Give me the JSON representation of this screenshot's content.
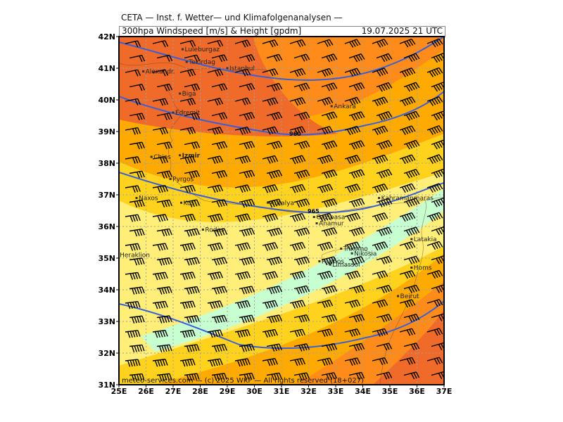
{
  "header": {
    "title": "CETA — Inst. f. Wetter— und Klimafolgenanalysen —",
    "subtitle_left": "300hpa Windspeed [m/s] & Height [gpdm]",
    "subtitle_right": "19.07.2025 21 UTC"
  },
  "axes": {
    "lat_labels": [
      "42N",
      "41N",
      "40N",
      "39N",
      "38N",
      "37N",
      "36N",
      "35N",
      "34N",
      "33N",
      "32N",
      "31N"
    ],
    "lon_labels": [
      "25E",
      "26E",
      "27E",
      "28E",
      "29E",
      "30E",
      "31E",
      "32E",
      "33E",
      "34E",
      "35E",
      "36E",
      "37E"
    ],
    "lat_range": [
      31,
      42
    ],
    "lon_range": [
      25,
      37
    ]
  },
  "colors": {
    "light_green": "#c8ffd0",
    "pale_yellow": "#ffee77",
    "yellow": "#ffd21e",
    "orange_light": "#ffaa00",
    "orange": "#ff8c1a",
    "orange_dark": "#f06a2a",
    "contour": "#3a5fd8",
    "barb": "#000000"
  },
  "contours": [
    {
      "label": "960"
    },
    {
      "label": "965"
    }
  ],
  "cities": [
    {
      "name": "Luleburgaz",
      "lon": 27.35,
      "lat": 41.6,
      "bold": false
    },
    {
      "name": "Tekirdag",
      "lon": 27.5,
      "lat": 41.2,
      "bold": false
    },
    {
      "name": "Alexandr.",
      "lon": 25.9,
      "lat": 40.9,
      "bold": false
    },
    {
      "name": "Istanbul",
      "lon": 29.0,
      "lat": 41.0,
      "bold": false
    },
    {
      "name": "Biga",
      "lon": 27.25,
      "lat": 40.2,
      "bold": false
    },
    {
      "name": "Edremit",
      "lon": 27.0,
      "lat": 39.6,
      "bold": false
    },
    {
      "name": "Ankara",
      "lon": 32.85,
      "lat": 39.8,
      "bold": false
    },
    {
      "name": "Chios",
      "lon": 26.2,
      "lat": 38.2,
      "bold": false
    },
    {
      "name": "Izmir",
      "lon": 27.25,
      "lat": 38.25,
      "bold": true
    },
    {
      "name": "Pyrgos",
      "lon": 26.9,
      "lat": 37.5,
      "bold": false
    },
    {
      "name": "Naxos",
      "lon": 25.65,
      "lat": 36.9,
      "bold": false
    },
    {
      "name": "Kos",
      "lon": 27.3,
      "lat": 36.75,
      "bold": false
    },
    {
      "name": "Antalya",
      "lon": 30.5,
      "lat": 36.75,
      "bold": false
    },
    {
      "name": "Kahramanmaras",
      "lon": 34.6,
      "lat": 36.9,
      "bold": false
    },
    {
      "name": "Gazipasa",
      "lon": 32.2,
      "lat": 36.3,
      "bold": false
    },
    {
      "name": "Anamur",
      "lon": 32.3,
      "lat": 36.1,
      "bold": false
    },
    {
      "name": "Rodos",
      "lon": 28.1,
      "lat": 35.9,
      "bold": false
    },
    {
      "name": "Latakia",
      "lon": 35.8,
      "lat": 35.6,
      "bold": false
    },
    {
      "name": "Heraklion",
      "lon": 24.95,
      "lat": 35.1,
      "bold": false
    },
    {
      "name": "Trikomo",
      "lon": 33.2,
      "lat": 35.3,
      "bold": false
    },
    {
      "name": "Nikosia",
      "lon": 33.6,
      "lat": 35.15,
      "bold": false
    },
    {
      "name": "Paphos",
      "lon": 32.4,
      "lat": 34.9,
      "bold": false
    },
    {
      "name": "Limassol",
      "lon": 32.8,
      "lat": 34.8,
      "bold": false
    },
    {
      "name": "Homs",
      "lon": 35.8,
      "lat": 34.7,
      "bold": false
    },
    {
      "name": "Beirut",
      "lon": 35.3,
      "lat": 33.8,
      "bold": false
    }
  ],
  "footer": {
    "copyright": "meteo-services.com — (c) 2025 WKF — All rights reserved (18+027)"
  }
}
